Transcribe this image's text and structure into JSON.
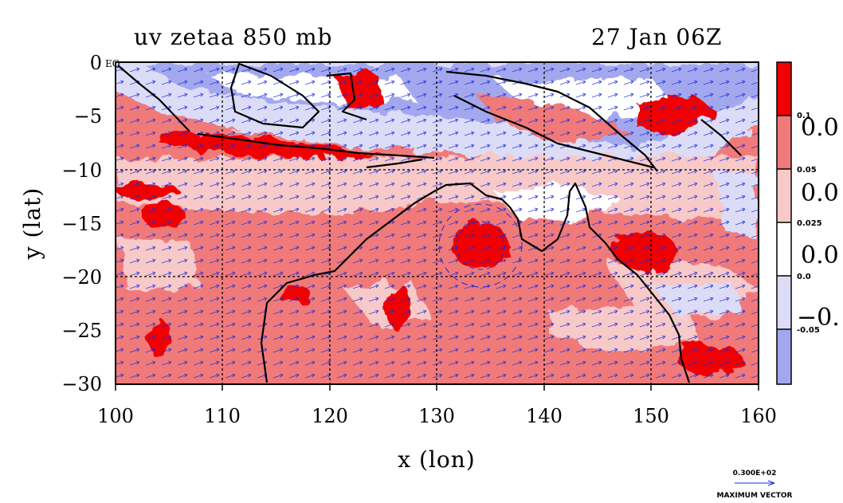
{
  "title_left": "uv zetaa 850 mb",
  "title_right": "27 Jan 06Z",
  "x_axis_label": "x (lon)",
  "y_axis_label": "y (lat)",
  "x_ticks": [
    "100",
    "110",
    "120",
    "130",
    "140",
    "150",
    "160"
  ],
  "y_ticks": [
    "0",
    "−5",
    "−10",
    "−15",
    "−20",
    "−25",
    "−30"
  ],
  "eq_label": "EQ",
  "colorbar": {
    "small_labels": [
      "0.1",
      "0.05",
      "0.025",
      "0.0",
      "-0.05"
    ],
    "large_labels": [
      "0.0",
      "0.0",
      "0.0",
      "−0."
    ]
  },
  "vector_key": {
    "value": "0.300E+02",
    "caption": "MAXIMUM VECTOR"
  },
  "colors": {
    "strong_pos": "#f00000",
    "mid_pos": "#f07a7a",
    "weak_pos": "#f7c9c9",
    "neutral": "#ffffff",
    "weak_neg": "#dcdcf7",
    "strong_neg": "#a3a8ee",
    "vectors": "#1a2be0",
    "contour": "#e02020"
  },
  "chart_data": {
    "type": "map",
    "variable": "uv zetaa 850 mb",
    "time": "27 Jan 06Z",
    "xlim": [
      100,
      160
    ],
    "ylim": [
      -30,
      0
    ],
    "grid": true,
    "contour_levels": [
      -0.05,
      0.0,
      0.025,
      0.05,
      0.1
    ],
    "features": [
      {
        "label": "vortex",
        "lon": 134.5,
        "lat": -17.5
      }
    ]
  }
}
